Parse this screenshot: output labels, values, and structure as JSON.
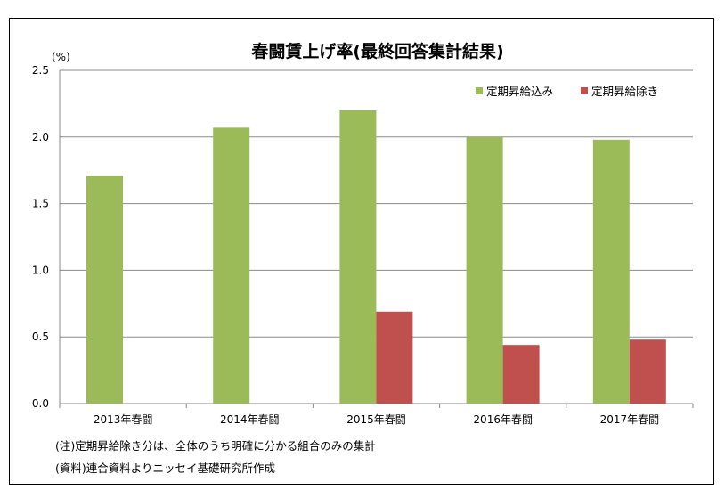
{
  "chart_data": {
    "type": "bar",
    "title": "春闘賃上げ率(最終回答集計結果)",
    "unit_label": "(%)",
    "categories": [
      "2013年春闘",
      "2014年春闘",
      "2015年春闘",
      "2016年春闘",
      "2017年春闘"
    ],
    "series": [
      {
        "name": "定期昇給込み",
        "color": "#9bbb59",
        "values": [
          1.71,
          2.07,
          2.2,
          2.0,
          1.98
        ]
      },
      {
        "name": "定期昇給除き",
        "color": "#c0504d",
        "values": [
          null,
          null,
          0.69,
          0.44,
          0.48
        ]
      }
    ],
    "ylim": [
      0,
      2.5
    ],
    "yticks": [
      "0.0",
      "0.5",
      "1.0",
      "1.5",
      "2.0",
      "2.5"
    ],
    "grid": true,
    "legend_position": "top-right"
  },
  "notes": {
    "note1": "(注)定期昇給除き分は、全体のうち明確に分かる組合のみの集計",
    "note2": "(資料)連合資料よりニッセイ基礎研究所作成"
  }
}
